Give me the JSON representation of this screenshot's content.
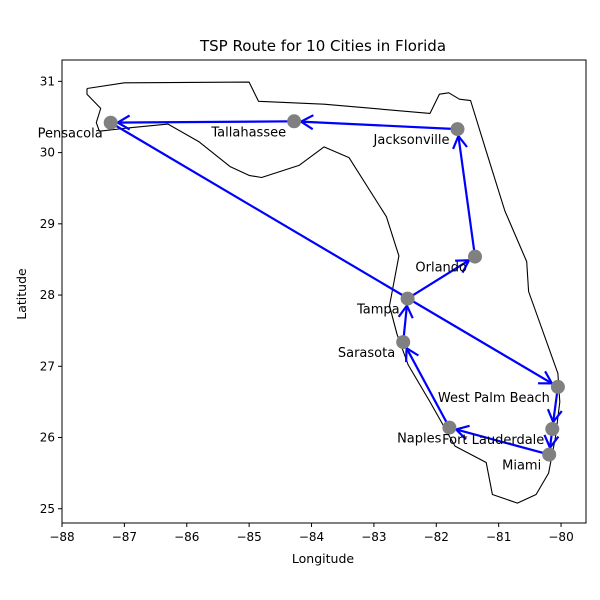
{
  "chart_data": {
    "type": "scatter",
    "title": "TSP Route for 10 Cities in Florida",
    "xlabel": "Longitude",
    "ylabel": "Latitude",
    "xlim": [
      -88.0,
      -79.6
    ],
    "ylim": [
      24.8,
      31.3
    ],
    "xticks": [
      -88,
      -87,
      -86,
      -85,
      -84,
      -83,
      -82,
      -81,
      -80
    ],
    "yticks": [
      25,
      26,
      27,
      28,
      29,
      30,
      31
    ],
    "grid": false,
    "colors": {
      "route": "#0000ff",
      "marker": "#808080",
      "outline": "#000000"
    },
    "cities": [
      {
        "name": "Pensacola",
        "lon": -87.22,
        "lat": 30.42
      },
      {
        "name": "Tallahassee",
        "lon": -84.28,
        "lat": 30.44
      },
      {
        "name": "Jacksonville",
        "lon": -81.66,
        "lat": 30.33
      },
      {
        "name": "Orlando",
        "lon": -81.38,
        "lat": 28.54
      },
      {
        "name": "Tampa",
        "lon": -82.46,
        "lat": 27.95
      },
      {
        "name": "Sarasota",
        "lon": -82.53,
        "lat": 27.34
      },
      {
        "name": "Naples",
        "lon": -81.79,
        "lat": 26.14
      },
      {
        "name": "Fort Lauderdale",
        "lon": -80.14,
        "lat": 26.12
      },
      {
        "name": "Miami",
        "lon": -80.19,
        "lat": 25.76
      },
      {
        "name": "West Palm Beach",
        "lon": -80.05,
        "lat": 26.71
      }
    ],
    "route": [
      "Pensacola",
      "West Palm Beach",
      "Fort Lauderdale",
      "Miami",
      "Naples",
      "Sarasota",
      "Tampa",
      "Orlando",
      "Jacksonville",
      "Tallahassee",
      "Pensacola"
    ],
    "florida_outline": [
      [
        -87.6,
        30.9
      ],
      [
        -87.0,
        30.98
      ],
      [
        -85.0,
        30.99
      ],
      [
        -84.85,
        30.72
      ],
      [
        -83.8,
        30.68
      ],
      [
        -82.1,
        30.55
      ],
      [
        -81.95,
        30.82
      ],
      [
        -81.8,
        30.84
      ],
      [
        -81.63,
        30.75
      ],
      [
        -81.45,
        30.73
      ],
      [
        -81.2,
        30.02
      ],
      [
        -80.9,
        29.18
      ],
      [
        -80.55,
        28.47
      ],
      [
        -80.52,
        28.05
      ],
      [
        -80.05,
        26.9
      ],
      [
        -80.02,
        26.5
      ],
      [
        -80.09,
        26.0
      ],
      [
        -80.2,
        25.5
      ],
      [
        -80.4,
        25.2
      ],
      [
        -80.7,
        25.08
      ],
      [
        -81.1,
        25.2
      ],
      [
        -81.2,
        25.65
      ],
      [
        -81.7,
        25.88
      ],
      [
        -82.1,
        26.5
      ],
      [
        -82.45,
        27.02
      ],
      [
        -82.63,
        27.45
      ],
      [
        -82.75,
        27.85
      ],
      [
        -82.6,
        28.55
      ],
      [
        -82.8,
        29.1
      ],
      [
        -83.4,
        29.93
      ],
      [
        -83.8,
        30.08
      ],
      [
        -84.2,
        29.82
      ],
      [
        -84.8,
        29.65
      ],
      [
        -85.0,
        29.68
      ],
      [
        -85.3,
        29.8
      ],
      [
        -85.8,
        30.15
      ],
      [
        -86.3,
        30.4
      ],
      [
        -86.9,
        30.35
      ],
      [
        -87.4,
        30.3
      ],
      [
        -87.45,
        30.42
      ],
      [
        -87.38,
        30.62
      ],
      [
        -87.6,
        30.82
      ],
      [
        -87.6,
        30.9
      ]
    ]
  }
}
